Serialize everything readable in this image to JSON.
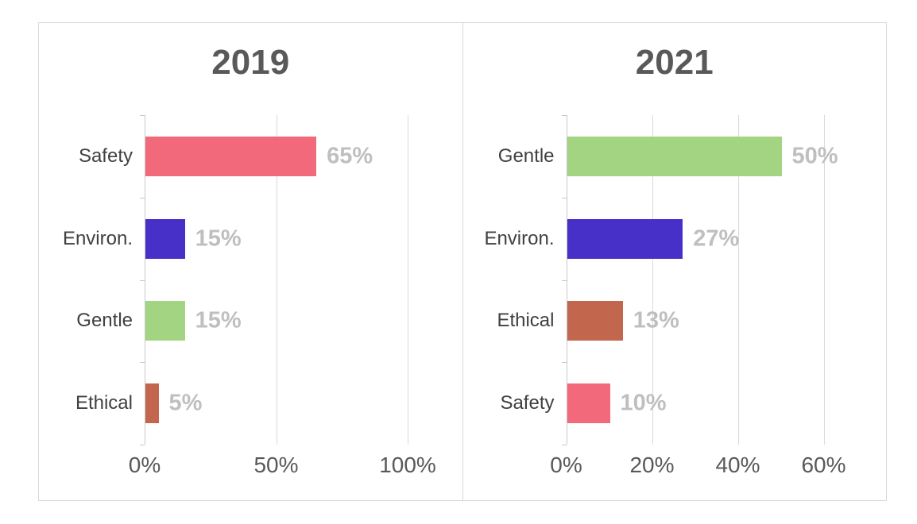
{
  "palette": {
    "title_color": "#595959",
    "axis_label_color": "#595959",
    "category_label_color": "#404040",
    "data_label_color": "#bfbfbf",
    "gridline_color": "#d9d9d9",
    "border_color": "#d9d9d9",
    "background": "#ffffff"
  },
  "chart_data": [
    {
      "type": "bar",
      "orientation": "horizontal",
      "title": "2019",
      "categories": [
        "Safety",
        "Environ.",
        "Gentle",
        "Ethical"
      ],
      "values": [
        65,
        15,
        15,
        5
      ],
      "data_labels": [
        "65%",
        "15%",
        "15%",
        "5%"
      ],
      "bar_colors": [
        "#f2697b",
        "#4730c8",
        "#a2d481",
        "#c2664d"
      ],
      "xlim": [
        0,
        100
      ],
      "x_tick_values": [
        0,
        50,
        100
      ],
      "x_tick_labels": [
        "0%",
        "50%",
        "100%"
      ],
      "xlabel": "",
      "ylabel": "",
      "grid": true,
      "legend": false
    },
    {
      "type": "bar",
      "orientation": "horizontal",
      "title": "2021",
      "categories": [
        "Gentle",
        "Environ.",
        "Ethical",
        "Safety"
      ],
      "values": [
        50,
        27,
        13,
        10
      ],
      "data_labels": [
        "50%",
        "27%",
        "13%",
        "10%"
      ],
      "bar_colors": [
        "#a2d481",
        "#4730c8",
        "#c2664d",
        "#f2697b"
      ],
      "xlim": [
        0,
        60
      ],
      "x_tick_values": [
        0,
        20,
        40,
        60
      ],
      "x_tick_labels": [
        "0%",
        "20%",
        "40%",
        "60%"
      ],
      "xlabel": "",
      "ylabel": "",
      "grid": true,
      "legend": false
    }
  ]
}
